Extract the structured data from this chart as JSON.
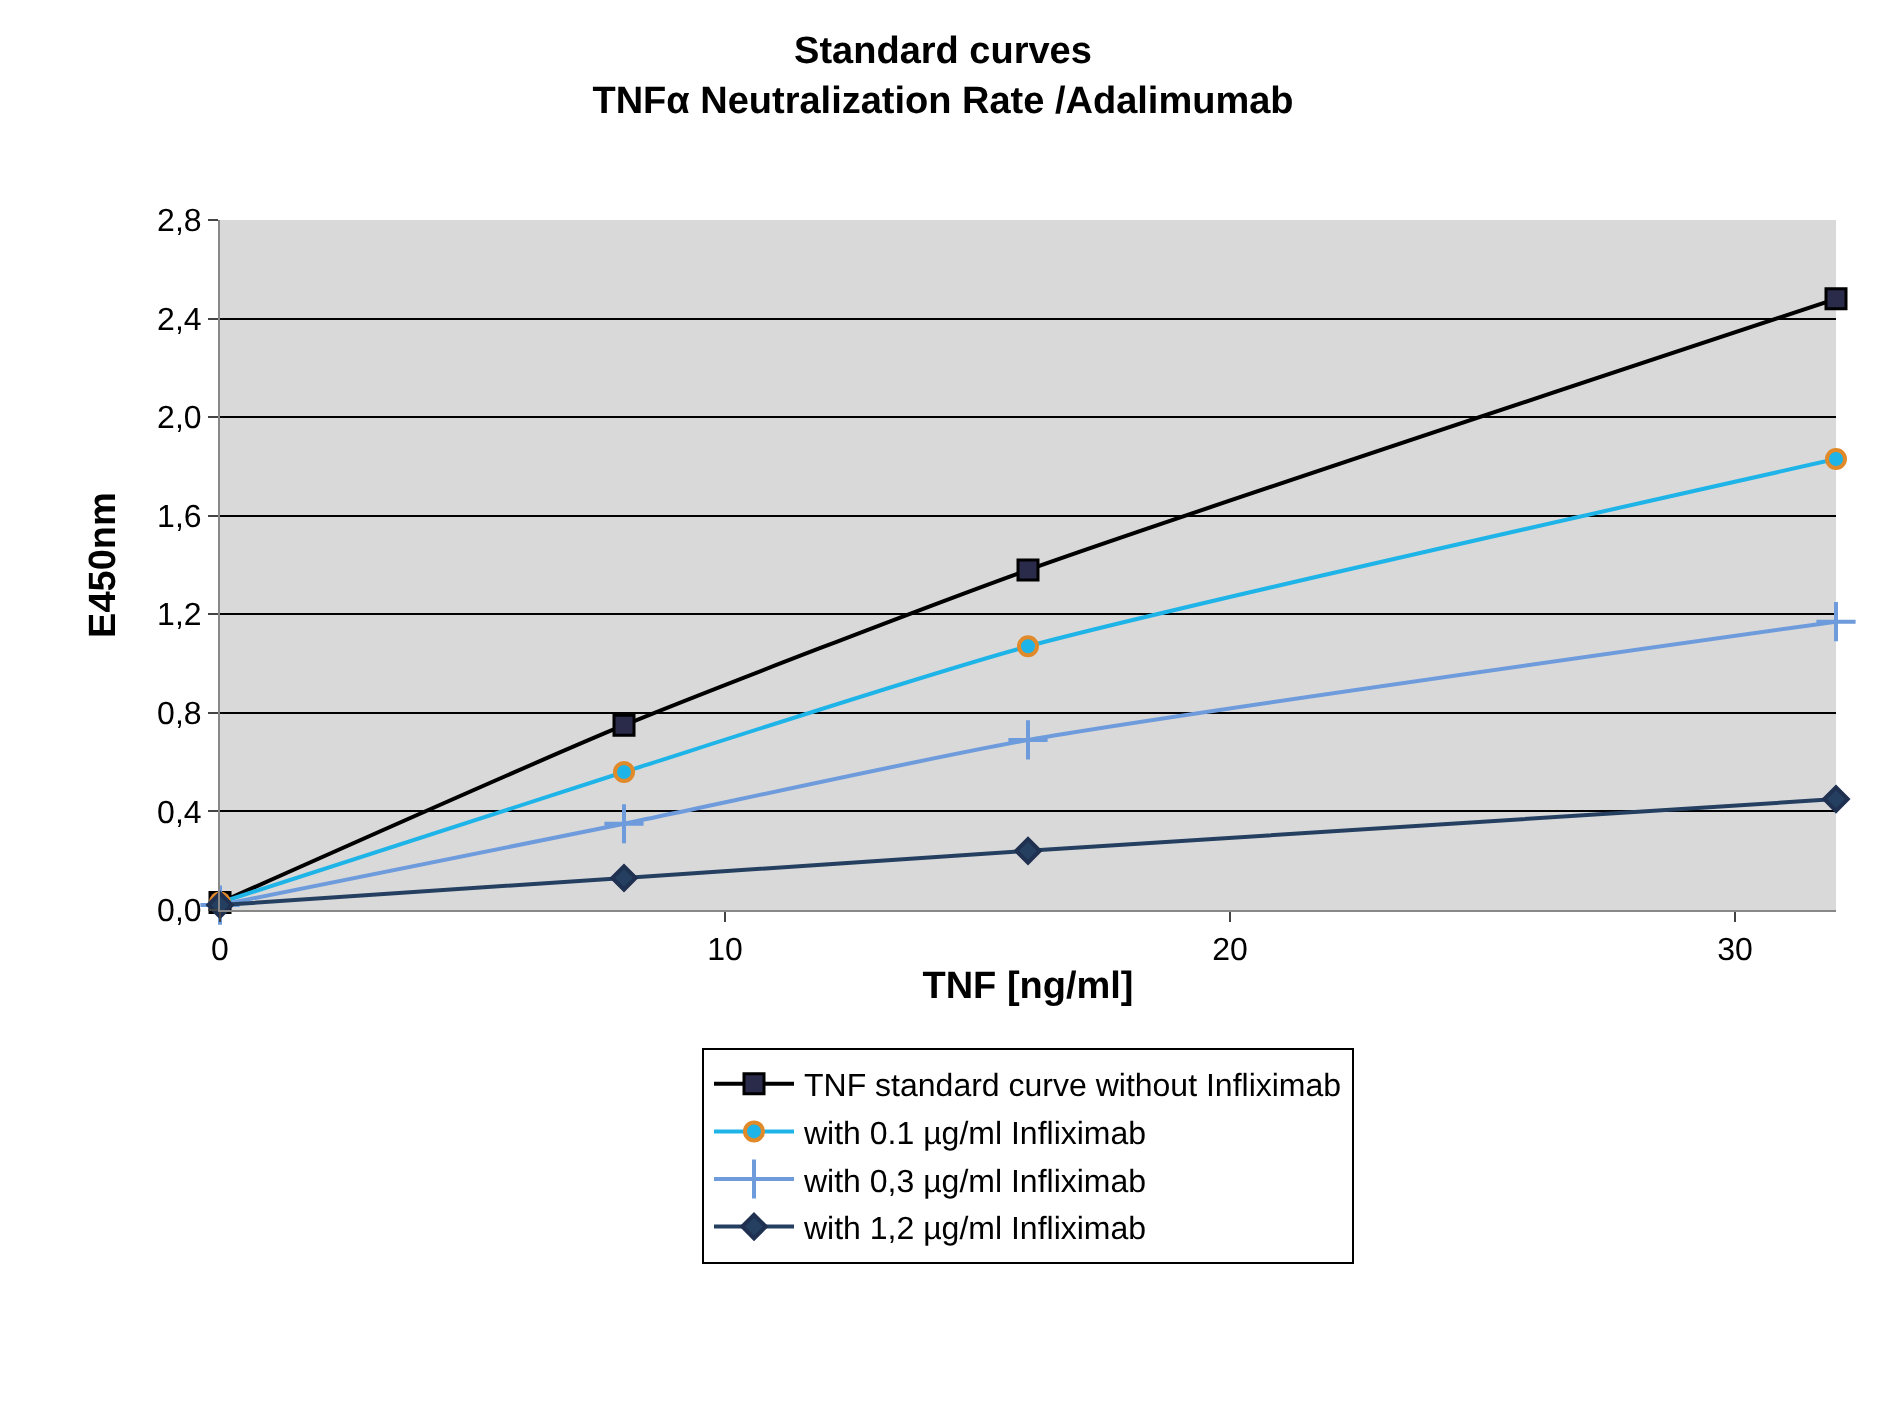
{
  "chart_data": {
    "type": "line",
    "title": "Standard curves\nTNFα Neutralization Rate /Adalimumab",
    "xlabel": "TNF [ng/ml]",
    "ylabel": "E450nm",
    "x": [
      0,
      8,
      16,
      32
    ],
    "xlim": [
      0,
      32
    ],
    "xticks": [
      0,
      10,
      20,
      30
    ],
    "ylim": [
      0,
      2.8
    ],
    "yticks": [
      {
        "value": 0,
        "label": "0,0"
      },
      {
        "value": 0.4,
        "label": "0,4"
      },
      {
        "value": 0.8,
        "label": "0,8"
      },
      {
        "value": 1.2,
        "label": "1,2"
      },
      {
        "value": 1.6,
        "label": "1,6"
      },
      {
        "value": 2.0,
        "label": "2,0"
      },
      {
        "value": 2.4,
        "label": "2,4"
      },
      {
        "value": 2.8,
        "label": "2,8"
      }
    ],
    "grid": "y",
    "legend": "bottom",
    "series": [
      {
        "name": "TNF standard curve without Infliximab",
        "color": "#000000",
        "marker": "square",
        "values": [
          0.03,
          0.75,
          1.38,
          2.48
        ]
      },
      {
        "name": "with 0.1 µg/ml Infliximab",
        "color": "#1fb4e8",
        "marker": "circle",
        "values": [
          0.03,
          0.56,
          1.07,
          1.83
        ]
      },
      {
        "name": "with 0,3 µg/ml Infliximab",
        "color": "#6e9bdc",
        "marker": "cross",
        "values": [
          0.02,
          0.35,
          0.69,
          1.17
        ]
      },
      {
        "name": "with 1,2 µg/ml Infliximab",
        "color": "#243f60",
        "marker": "diamond",
        "values": [
          0.02,
          0.13,
          0.24,
          0.45
        ]
      }
    ]
  }
}
